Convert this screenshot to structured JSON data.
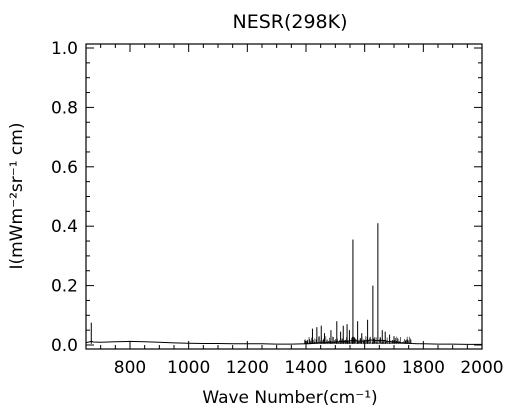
{
  "chart_data": {
    "type": "line",
    "title": "NESR(298K)",
    "xlabel": "Wave Number(cm⁻¹)",
    "ylabel": "I(mWm⁻²sr⁻¹ cm)",
    "xlim": [
      650,
      2000
    ],
    "ylim": [
      0.0,
      1.0
    ],
    "x_ticks": [
      800,
      1000,
      1200,
      1400,
      1600,
      1800,
      2000
    ],
    "x_tick_labels": [
      "800",
      "1000",
      "1200",
      "1400",
      "1600",
      "1800",
      "2000"
    ],
    "y_ticks": [
      0.0,
      0.2,
      0.4,
      0.6,
      0.8,
      1.0
    ],
    "y_tick_labels": [
      "0.0",
      "0.2",
      "0.4",
      "0.6",
      "0.8",
      "1.0"
    ],
    "grid": false,
    "series": [
      {
        "x": [
          650,
          660,
          668,
          675,
          700,
          750,
          800,
          850,
          900,
          950,
          1000,
          1050,
          1100,
          1150,
          1200,
          1250,
          1300,
          1350,
          1400,
          1410,
          1420,
          1430,
          1440,
          1450,
          1460,
          1470,
          1480,
          1490,
          1500,
          1510,
          1520,
          1530,
          1540,
          1550,
          1560,
          1570,
          1580,
          1590,
          1600,
          1610,
          1620,
          1630,
          1640,
          1650,
          1660,
          1670,
          1680,
          1690,
          1700,
          1710,
          1720,
          1730,
          1740,
          1750,
          1760,
          1780,
          1800,
          1850,
          1900,
          1950,
          2000
        ],
        "y": [
          0.008,
          0.01,
          0.012,
          0.01,
          0.009,
          0.011,
          0.012,
          0.011,
          0.009,
          0.007,
          0.006,
          0.005,
          0.005,
          0.004,
          0.004,
          0.004,
          0.003,
          0.003,
          0.004,
          0.004,
          0.005,
          0.006,
          0.007,
          0.008,
          0.007,
          0.008,
          0.01,
          0.009,
          0.01,
          0.011,
          0.012,
          0.012,
          0.013,
          0.014,
          0.015,
          0.014,
          0.013,
          0.013,
          0.014,
          0.015,
          0.017,
          0.016,
          0.014,
          0.015,
          0.016,
          0.014,
          0.012,
          0.011,
          0.01,
          0.009,
          0.008,
          0.007,
          0.006,
          0.006,
          0.005,
          0.004,
          0.004,
          0.003,
          0.003,
          0.002,
          0.002
        ]
      }
    ],
    "peaks": [
      {
        "x": 668,
        "y": 0.075
      },
      {
        "x": 1422,
        "y": 0.055
      },
      {
        "x": 1437,
        "y": 0.06
      },
      {
        "x": 1452,
        "y": 0.065
      },
      {
        "x": 1463,
        "y": 0.04
      },
      {
        "x": 1485,
        "y": 0.05
      },
      {
        "x": 1505,
        "y": 0.08
      },
      {
        "x": 1518,
        "y": 0.045
      },
      {
        "x": 1527,
        "y": 0.065
      },
      {
        "x": 1540,
        "y": 0.07
      },
      {
        "x": 1548,
        "y": 0.05
      },
      {
        "x": 1560,
        "y": 0.355
      },
      {
        "x": 1576,
        "y": 0.08
      },
      {
        "x": 1590,
        "y": 0.04
      },
      {
        "x": 1610,
        "y": 0.085
      },
      {
        "x": 1628,
        "y": 0.2
      },
      {
        "x": 1645,
        "y": 0.41
      },
      {
        "x": 1660,
        "y": 0.05
      },
      {
        "x": 1670,
        "y": 0.045
      },
      {
        "x": 1685,
        "y": 0.035
      },
      {
        "x": 1700,
        "y": 0.03
      }
    ]
  }
}
